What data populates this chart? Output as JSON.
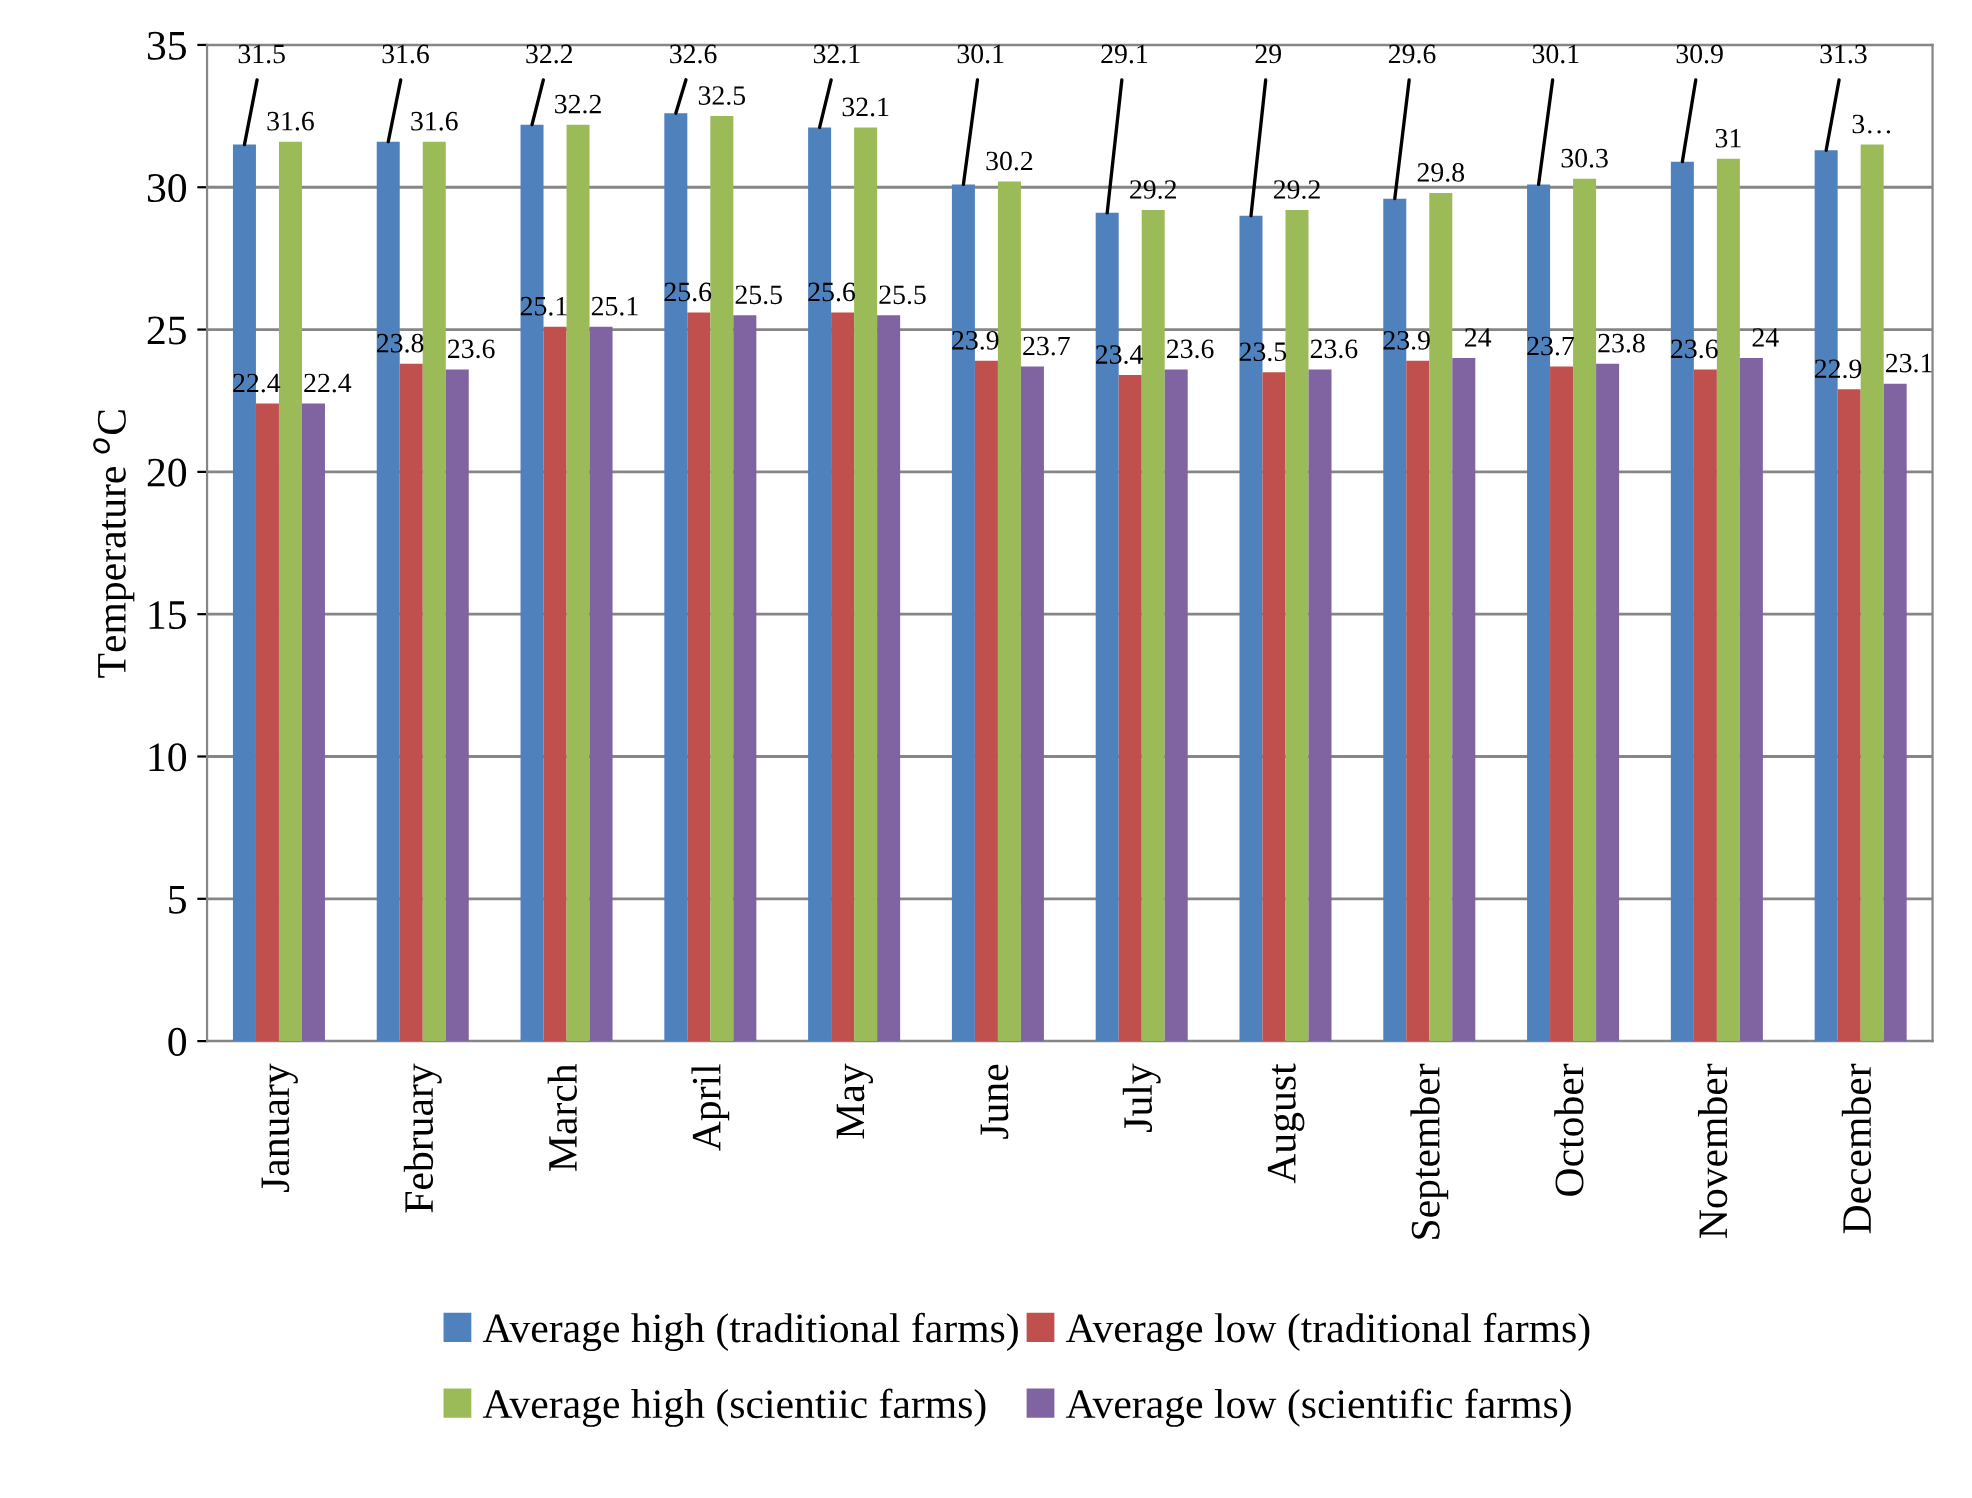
{
  "chart_data": {
    "type": "bar",
    "ylabel": "Temperature $^{o}$C",
    "categories": [
      "January",
      "February",
      "March",
      "April",
      "May",
      "June",
      "July",
      "August",
      "September",
      "October",
      "November",
      "December"
    ],
    "series": [
      {
        "name": "Average high (traditional farms)",
        "color": "#4f81bd",
        "values": [
          31.5,
          31.6,
          32.2,
          32.6,
          32.1,
          30.1,
          29.1,
          29,
          29.6,
          30.1,
          30.9,
          31.3
        ],
        "value_labels": [
          "31.5",
          "31.6",
          "32.2",
          "32.6",
          "32.1",
          "30.1",
          "29.1",
          "29",
          "29.6",
          "30.1",
          "30.9",
          "31.3"
        ]
      },
      {
        "name": "Average low (traditional farms)",
        "color": "#c0504d",
        "values": [
          22.4,
          23.8,
          25.1,
          25.6,
          25.6,
          23.9,
          23.4,
          23.5,
          23.9,
          23.7,
          23.6,
          22.9
        ],
        "value_labels": [
          "22.4",
          "23.8",
          "25.1",
          "25.6",
          "25.6",
          "23.9",
          "23.4",
          "23.5",
          "23.9",
          "23.7",
          "23.6",
          "22.9"
        ]
      },
      {
        "name": "Average high (scientiic farms)",
        "color": "#9bbb59",
        "values": [
          31.6,
          31.6,
          32.2,
          32.5,
          32.1,
          30.2,
          29.2,
          29.2,
          29.8,
          30.3,
          31,
          31.5
        ],
        "value_labels": [
          "31.6",
          "31.6",
          "32.2",
          "32.5",
          "32.1",
          "30.2",
          "29.2",
          "29.2",
          "29.8",
          "30.3",
          "31",
          "3…"
        ]
      },
      {
        "name": "Average low (scientific farms)",
        "color": "#8064a2",
        "values": [
          22.4,
          23.6,
          25.1,
          25.5,
          25.5,
          23.7,
          23.6,
          23.6,
          24,
          23.8,
          24,
          23.1
        ],
        "value_labels": [
          "22.4",
          "23.6",
          "25.1",
          "25.5",
          "25.5",
          "23.7",
          "23.6",
          "23.6",
          "24",
          "23.8",
          "24",
          "23.1"
        ]
      }
    ],
    "ylim": [
      0,
      35
    ],
    "yticks": [
      0,
      5,
      10,
      15,
      20,
      25,
      30,
      35
    ],
    "grid": "y",
    "legend": "bottom"
  }
}
